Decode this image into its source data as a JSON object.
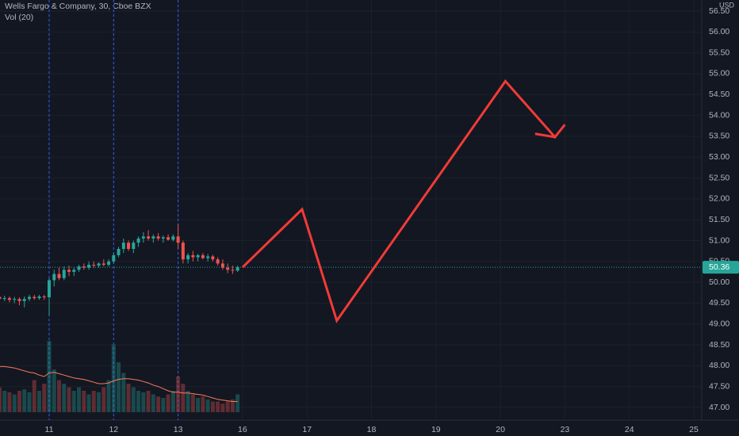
{
  "chart_data": {
    "type": "candlestick",
    "title": "Wells Fargo & Company, 30, Cboe BZX",
    "indicator": "Vol (20)",
    "currency": "USD",
    "last_price": {
      "value": 50.36,
      "label": "50.36"
    },
    "up_color": "#26a69a",
    "down_color": "#ef5350",
    "drawing_color": "#f23b36",
    "ma_color": "#f77c5a",
    "xticks": [
      {
        "value": 0,
        "label": "11"
      },
      {
        "value": 13,
        "label": "12"
      },
      {
        "value": 26,
        "label": "13"
      },
      {
        "value": 39,
        "label": "16"
      },
      {
        "value": 52,
        "label": "17"
      },
      {
        "value": 65,
        "label": "18"
      },
      {
        "value": 78,
        "label": "19"
      },
      {
        "value": 91,
        "label": "20"
      },
      {
        "value": 104,
        "label": "23"
      },
      {
        "value": 117,
        "label": "24"
      },
      {
        "value": 130,
        "label": "25"
      }
    ],
    "session_lines": [
      0,
      13,
      26
    ],
    "ylim": [
      47.0,
      56.5
    ],
    "yticks": [
      {
        "value": 47,
        "label": "47.00"
      },
      {
        "value": 47.5,
        "label": "47.50"
      },
      {
        "value": 48,
        "label": "48.00"
      },
      {
        "value": 48.5,
        "label": "48.50"
      },
      {
        "value": 49,
        "label": "49.00"
      },
      {
        "value": 49.5,
        "label": "49.50"
      },
      {
        "value": 50,
        "label": "50.00"
      },
      {
        "value": 50.5,
        "label": "50.50"
      },
      {
        "value": 51,
        "label": "51.00"
      },
      {
        "value": 51.5,
        "label": "51.50"
      },
      {
        "value": 52,
        "label": "52.00"
      },
      {
        "value": 52.5,
        "label": "52.50"
      },
      {
        "value": 53,
        "label": "53.00"
      },
      {
        "value": 53.5,
        "label": "53.50"
      },
      {
        "value": 54,
        "label": "54.00"
      },
      {
        "value": 54.5,
        "label": "54.50"
      },
      {
        "value": 55,
        "label": "55.00"
      },
      {
        "value": 55.5,
        "label": "55.50"
      },
      {
        "value": 56,
        "label": "56.00"
      },
      {
        "value": 56.5,
        "label": "56.50"
      }
    ],
    "candles": {
      "x": [
        -10,
        -9,
        -8,
        -7,
        -6,
        -5,
        -4,
        -3,
        -2,
        -1,
        0,
        1,
        2,
        3,
        4,
        5,
        6,
        7,
        8,
        9,
        10,
        11,
        12,
        13,
        14,
        15,
        16,
        17,
        18,
        19,
        20,
        21,
        22,
        23,
        24,
        25,
        26,
        27,
        28,
        29,
        30,
        31,
        32,
        33,
        34,
        35,
        36,
        37,
        38
      ],
      "open": [
        49.65,
        49.6,
        49.62,
        49.58,
        49.6,
        49.55,
        49.6,
        49.65,
        49.62,
        49.66,
        49.64,
        50.05,
        50.2,
        50.1,
        50.3,
        50.25,
        50.3,
        50.38,
        50.35,
        50.42,
        50.4,
        50.45,
        50.42,
        50.5,
        50.65,
        50.8,
        50.95,
        50.8,
        50.95,
        51.05,
        51.1,
        51.05,
        51.1,
        51.05,
        51.08,
        51.02,
        51.1,
        50.95,
        50.55,
        50.65,
        50.6,
        50.65,
        50.58,
        50.62,
        50.55,
        50.45,
        50.35,
        50.3,
        50.28
      ],
      "high": [
        49.7,
        49.68,
        49.66,
        49.65,
        49.64,
        49.66,
        49.7,
        49.7,
        49.7,
        49.7,
        50.1,
        50.3,
        50.35,
        50.38,
        50.4,
        50.35,
        50.42,
        50.45,
        50.5,
        50.5,
        50.48,
        50.55,
        50.55,
        50.7,
        50.85,
        51.05,
        51.0,
        51.0,
        51.1,
        51.2,
        51.25,
        51.15,
        51.18,
        51.12,
        51.15,
        51.15,
        51.4,
        51.0,
        50.7,
        50.75,
        50.68,
        50.7,
        50.68,
        50.66,
        50.6,
        50.55,
        50.45,
        50.4,
        50.4
      ],
      "low": [
        49.55,
        49.55,
        49.52,
        49.5,
        49.45,
        49.4,
        49.55,
        49.58,
        49.58,
        49.58,
        49.2,
        49.9,
        50.05,
        50.05,
        50.15,
        50.15,
        50.25,
        50.3,
        50.3,
        50.35,
        50.35,
        50.38,
        50.38,
        50.45,
        50.6,
        50.7,
        50.75,
        50.7,
        50.85,
        50.95,
        51.0,
        50.95,
        51.0,
        50.95,
        51.0,
        50.98,
        50.8,
        50.45,
        50.45,
        50.5,
        50.5,
        50.55,
        50.5,
        50.5,
        50.4,
        50.3,
        50.22,
        50.2,
        50.25
      ],
      "close": [
        49.6,
        49.62,
        49.58,
        49.6,
        49.55,
        49.6,
        49.65,
        49.62,
        49.66,
        49.64,
        50.05,
        50.2,
        50.1,
        50.3,
        50.25,
        50.3,
        50.38,
        50.35,
        50.42,
        50.4,
        50.45,
        50.42,
        50.5,
        50.65,
        50.8,
        50.95,
        50.8,
        50.95,
        51.05,
        51.1,
        51.05,
        51.1,
        51.05,
        51.08,
        51.02,
        51.1,
        50.95,
        50.55,
        50.65,
        50.6,
        50.65,
        50.58,
        50.62,
        50.55,
        50.45,
        50.35,
        50.3,
        50.28,
        50.36
      ]
    },
    "volume": [
      35,
      30,
      28,
      25,
      30,
      32,
      28,
      45,
      30,
      40,
      100,
      60,
      45,
      40,
      35,
      30,
      35,
      30,
      25,
      30,
      28,
      35,
      45,
      95,
      70,
      55,
      40,
      35,
      30,
      28,
      30,
      25,
      22,
      20,
      25,
      30,
      50,
      40,
      30,
      25,
      20,
      22,
      18,
      15,
      15,
      12,
      15,
      18,
      25
    ],
    "volume_ma": [
      64,
      64,
      63,
      62,
      60,
      58,
      56,
      55,
      52,
      50,
      55,
      56,
      54,
      52,
      50,
      48,
      47,
      46,
      44,
      42,
      40,
      40,
      41,
      44,
      46,
      47,
      47,
      46,
      45,
      43,
      41,
      38,
      36,
      33,
      30,
      28,
      28,
      27,
      27,
      26,
      25,
      24,
      22,
      20,
      18,
      17,
      16,
      15,
      15
    ],
    "drawings": [
      {
        "x": [
          39,
          51,
          58,
          92,
          102,
          104
        ],
        "values": [
          50.36,
          51.75,
          49.08,
          54.82,
          53.48,
          53.78
        ]
      },
      {
        "x": [
          98,
          102
        ],
        "values": [
          53.56,
          53.48
        ]
      }
    ]
  }
}
